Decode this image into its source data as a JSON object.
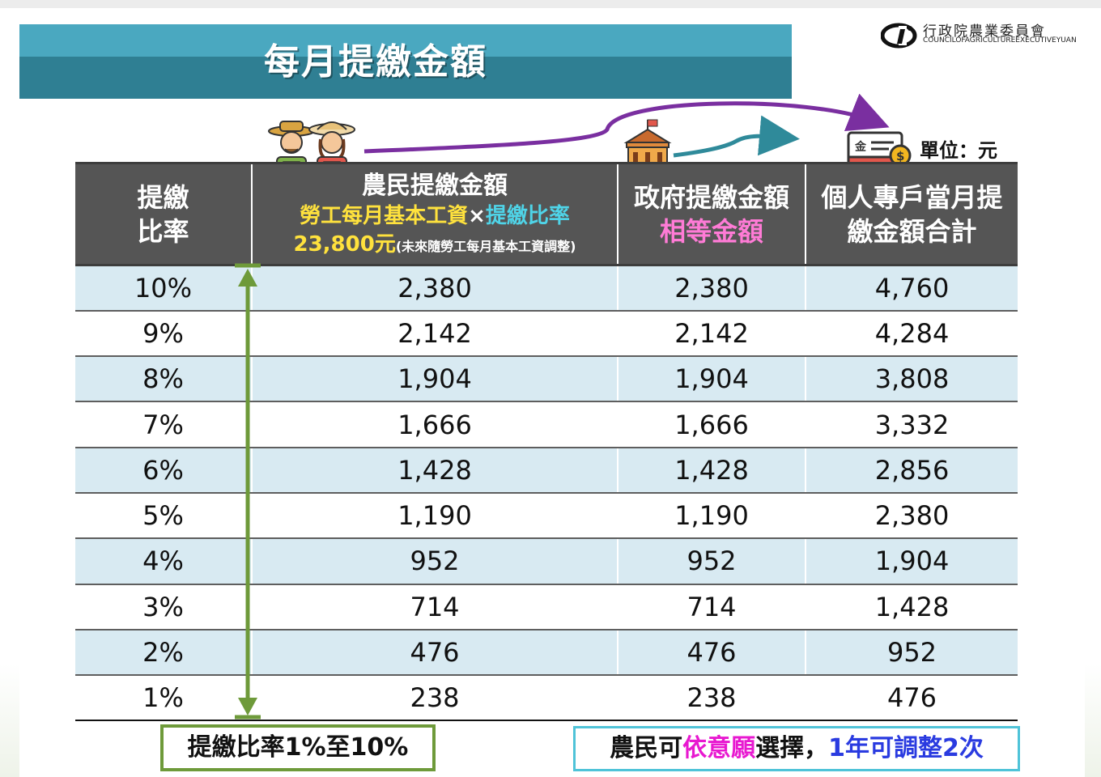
{
  "title": "每月提繳金額",
  "logo": {
    "zh": "行政院農業委員會",
    "en": "COUNCILOFAGRICULTUREEXECUTIVEYUAN"
  },
  "unit_label": "單位：元",
  "headers": {
    "col1": {
      "line1": "提繳",
      "line2": "比率"
    },
    "col2": {
      "title": "農民提繳金額",
      "formula_a": "勞工每月基本工資",
      "formula_x": "×",
      "formula_b": "提繳比率",
      "amount": "23,800元",
      "note": "(未來隨勞工每月基本工資調整)"
    },
    "col3": {
      "title": "政府提繳金額",
      "sub": "相等金額"
    },
    "col4": {
      "line1": "個人專戶當月提",
      "line2": "繳金額合計"
    }
  },
  "rows": [
    {
      "rate": "10%",
      "farmer": "2,380",
      "gov": "2,380",
      "total": "4,760"
    },
    {
      "rate": "9%",
      "farmer": "2,142",
      "gov": "2,142",
      "total": "4,284"
    },
    {
      "rate": "8%",
      "farmer": "1,904",
      "gov": "1,904",
      "total": "3,808"
    },
    {
      "rate": "7%",
      "farmer": "1,666",
      "gov": "1,666",
      "total": "3,332"
    },
    {
      "rate": "6%",
      "farmer": "1,428",
      "gov": "1,428",
      "total": "2,856"
    },
    {
      "rate": "5%",
      "farmer": "1,190",
      "gov": "1,190",
      "total": "2,380"
    },
    {
      "rate": "4%",
      "farmer": "952",
      "gov": "952",
      "total": "1,904"
    },
    {
      "rate": "3%",
      "farmer": "714",
      "gov": "714",
      "total": "1,428"
    },
    {
      "rate": "2%",
      "farmer": "476",
      "gov": "476",
      "total": "952"
    },
    {
      "rate": "1%",
      "farmer": "238",
      "gov": "238",
      "total": "476"
    }
  ],
  "note_left": "提繳比率1%至10%",
  "note_right": {
    "a": "農民可",
    "b": "依意願",
    "c": "選擇，",
    "d": "1年可調整2次"
  },
  "colors": {
    "title_band": "#2f7f93",
    "header_bg": "#555555",
    "row_alt": "#d8eaf2",
    "arrow_green": "#6e9a3a",
    "arrow_purple": "#7a2fa0",
    "arrow_teal": "#2f8a9a"
  },
  "icons": [
    "farmers-icon",
    "government-building-icon",
    "bankbook-coin-icon",
    "double-arrow-icon"
  ]
}
